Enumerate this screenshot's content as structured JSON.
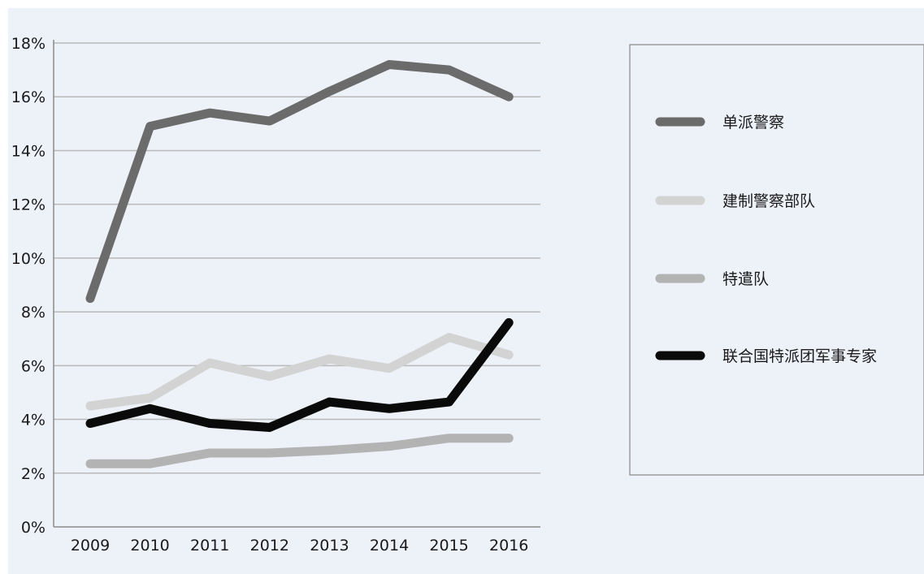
{
  "chart_data": {
    "type": "line",
    "title": "",
    "xlabel": "",
    "ylabel": "",
    "x": [
      "2009",
      "2010",
      "2011",
      "2012",
      "2013",
      "2014",
      "2015",
      "2016"
    ],
    "y_ticks": [
      "0%",
      "2%",
      "4%",
      "6%",
      "8%",
      "10%",
      "12%",
      "14%",
      "16%",
      "18%"
    ],
    "ylim": [
      0,
      18
    ],
    "y_unit": "%",
    "grid": true,
    "legend_position": "right",
    "series": [
      {
        "name": "单派警察",
        "color": "#6b6b6b",
        "values": [
          8.5,
          14.9,
          15.4,
          15.1,
          16.2,
          17.2,
          17.0,
          16.0
        ]
      },
      {
        "name": "建制警察部队",
        "color": "#d3d3d3",
        "values": [
          4.5,
          4.8,
          6.1,
          5.6,
          6.25,
          5.9,
          7.05,
          6.4
        ]
      },
      {
        "name": "特遣队",
        "color": "#b3b3b3",
        "values": [
          2.35,
          2.35,
          2.75,
          2.75,
          2.85,
          3.0,
          3.3,
          3.3
        ]
      },
      {
        "name": "联合国特派团军事专家",
        "color": "#0a0a0a",
        "values": [
          3.85,
          4.4,
          3.85,
          3.7,
          4.65,
          4.4,
          4.65,
          7.6
        ]
      }
    ]
  }
}
